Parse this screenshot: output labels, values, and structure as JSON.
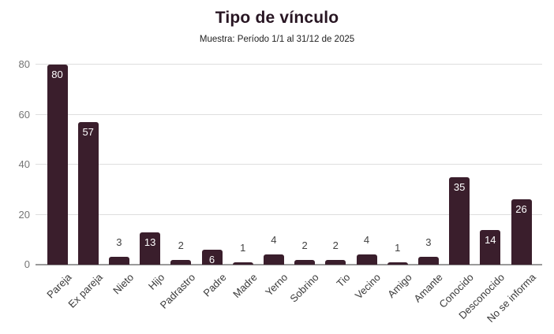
{
  "chart_data": {
    "type": "bar",
    "title": "Tipo de vínculo",
    "subtitle": "Muestra: Período 1/1 al 31/12 de 2025",
    "categories": [
      "Pareja",
      "Ex pareja",
      "Nieto",
      "Hijo",
      "Padrastro",
      "Padre",
      "Madre",
      "Yerno",
      "Sobrino",
      "Tio",
      "Vecino",
      "Amigo",
      "Amante",
      "Conocido",
      "Desconocido",
      "No se informa"
    ],
    "values": [
      80,
      57,
      3,
      13,
      2,
      6,
      1,
      4,
      2,
      2,
      4,
      1,
      3,
      35,
      14,
      26
    ],
    "xlabel": "",
    "ylabel": "",
    "ylim": [
      0,
      80
    ],
    "yticks": [
      0,
      20,
      40,
      60,
      80
    ],
    "grid": "horizontal",
    "legend": "none",
    "x_label_rotation_deg": -45,
    "colors": {
      "bar": "#3a1e2c",
      "grid": "#dedede",
      "baseline": "#9a9a9a",
      "y_tick_text": "#757575",
      "x_label_text": "#3a3a3a",
      "value_label_inside": "#ffffff",
      "value_label_outside": "#424242",
      "title_text": "#281623",
      "subtitle_text": "#222222",
      "background": "#ffffff"
    }
  }
}
